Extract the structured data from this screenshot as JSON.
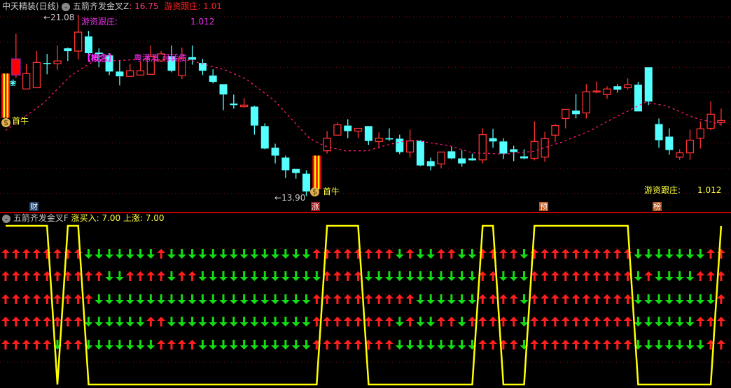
{
  "header": {
    "stock_name": "中天精装(日线)",
    "indicator_name": "五箭齐发金叉Z",
    "indicator_value": ": 16.75",
    "youzi_label": "游资跟庄",
    "youzi_value": ": 1.01",
    "menu_icon": "chevron-down-circle-icon"
  },
  "main_chart": {
    "high_label": "21.08",
    "low_label": "13.90",
    "youzi_label_top": "游资跟庄:",
    "youzi_value_top": "1.012",
    "concept_label": "【概念】",
    "concept_value": "粤港澳 可转债",
    "first_bull_label": "首牛",
    "youzi_label_bottom": "游资跟庄:",
    "youzi_value_bottom": "1.012",
    "badges": [
      {
        "text": "财",
        "color": "#1c3f6e"
      },
      {
        "text": "涨",
        "color": "#a01414"
      },
      {
        "text": "预",
        "color": "#c0501a"
      },
      {
        "text": "榜",
        "color": "#b0521a"
      }
    ],
    "colors": {
      "up": "#ff3232",
      "down": "#54ffff",
      "ma": "#ff1a78",
      "grid": "#7a1010",
      "label_magenta": "#e632e6",
      "label_yellow": "#ffff3c"
    }
  },
  "chart_data": {
    "type": "candlestick",
    "price_grid": [
      14,
      15,
      16,
      17,
      18,
      19,
      20,
      21
    ],
    "candles_ochl": [
      [
        17.0,
        18.75,
        18.75,
        17.0
      ],
      [
        18.69,
        19.33,
        20.33,
        18.58
      ],
      [
        18.14,
        18.75,
        19.14,
        18.14
      ],
      [
        18.19,
        19.19,
        19.64,
        18.19
      ],
      [
        19.17,
        19.15,
        19.53,
        18.72
      ],
      [
        19.14,
        19.25,
        19.86,
        18.89
      ],
      [
        19.75,
        19.64,
        19.78,
        19.25
      ],
      [
        19.64,
        20.39,
        21.08,
        19.31
      ],
      [
        20.22,
        19.56,
        20.44,
        19.39
      ],
      [
        19.58,
        19.53,
        19.75,
        19.0
      ],
      [
        19.47,
        18.83,
        19.56,
        18.69
      ],
      [
        18.83,
        18.64,
        19.28,
        18.28
      ],
      [
        18.64,
        18.86,
        19.14,
        18.64
      ],
      [
        18.69,
        18.86,
        19.22,
        18.67
      ],
      [
        18.72,
        19.44,
        19.86,
        18.72
      ],
      [
        19.25,
        19.53,
        19.64,
        19.2
      ],
      [
        19.44,
        18.86,
        19.86,
        18.8
      ],
      [
        18.67,
        19.36,
        19.78,
        18.53
      ],
      [
        19.4,
        19.3,
        19.86,
        19.1
      ],
      [
        19.17,
        18.86,
        19.33,
        18.69
      ],
      [
        18.67,
        18.42,
        18.92,
        18.36
      ],
      [
        18.33,
        17.92,
        18.33,
        17.3
      ],
      [
        17.56,
        17.5,
        17.92,
        17.36
      ],
      [
        17.44,
        17.5,
        17.78,
        17.4
      ],
      [
        17.44,
        16.69,
        17.47,
        16.33
      ],
      [
        16.67,
        15.78,
        16.78,
        15.75
      ],
      [
        15.81,
        15.5,
        15.97,
        15.19
      ],
      [
        15.42,
        14.92,
        15.5,
        14.61
      ],
      [
        14.97,
        14.81,
        14.97,
        14.58
      ],
      [
        14.78,
        14.08,
        14.92,
        13.9
      ],
      [
        14.17,
        15.5,
        15.5,
        14.17
      ],
      [
        15.69,
        16.19,
        16.47,
        15.58
      ],
      [
        16.31,
        16.72,
        16.81,
        16.31
      ],
      [
        16.69,
        16.47,
        16.94,
        16.19
      ],
      [
        16.47,
        16.58,
        16.58,
        16.19
      ],
      [
        16.67,
        16.08,
        16.67,
        15.92
      ],
      [
        16.06,
        16.19,
        16.42,
        15.78
      ],
      [
        16.19,
        16.14,
        16.58,
        16.08
      ],
      [
        16.17,
        15.64,
        16.33,
        15.56
      ],
      [
        15.64,
        16.08,
        16.53,
        15.42
      ],
      [
        16.08,
        15.11,
        16.11,
        15.08
      ],
      [
        15.28,
        15.08,
        15.42,
        14.92
      ],
      [
        15.17,
        15.64,
        15.64,
        15.0
      ],
      [
        15.67,
        15.39,
        15.86,
        15.36
      ],
      [
        15.39,
        15.19,
        15.72,
        15.06
      ],
      [
        15.39,
        15.31,
        15.58,
        15.3
      ],
      [
        15.33,
        16.33,
        16.58,
        15.19
      ],
      [
        16.19,
        16.06,
        16.56,
        15.81
      ],
      [
        16.06,
        15.58,
        16.19,
        15.36
      ],
      [
        15.75,
        15.64,
        15.89,
        15.28
      ],
      [
        15.47,
        15.39,
        15.75,
        15.36
      ],
      [
        15.39,
        16.06,
        16.86,
        15.31
      ],
      [
        15.44,
        16.17,
        16.44,
        15.25
      ],
      [
        16.31,
        16.69,
        16.75,
        16.03
      ],
      [
        16.97,
        17.33,
        17.33,
        16.58
      ],
      [
        17.28,
        17.14,
        17.94,
        16.97
      ],
      [
        17.19,
        18.03,
        18.33,
        16.97
      ],
      [
        18.03,
        18.06,
        18.44,
        17.97
      ],
      [
        17.92,
        18.14,
        18.25,
        17.75
      ],
      [
        18.25,
        18.11,
        18.33,
        18.0
      ],
      [
        18.19,
        18.31,
        18.56,
        18.11
      ],
      [
        18.31,
        17.25,
        18.42,
        17.25
      ],
      [
        19.0,
        17.64,
        19.0,
        17.5
      ],
      [
        16.75,
        16.11,
        16.97,
        15.81
      ],
      [
        16.25,
        15.72,
        16.58,
        15.53
      ],
      [
        15.44,
        15.61,
        15.75,
        15.33
      ],
      [
        15.61,
        16.11,
        16.53,
        15.33
      ],
      [
        16.19,
        16.56,
        16.86,
        15.78
      ],
      [
        16.58,
        17.14,
        17.64,
        16.5
      ],
      [
        16.81,
        16.89,
        17.36,
        16.69
      ]
    ],
    "limit_up_bars": [
      0,
      30
    ],
    "ma_points": [
      [
        0,
        16.5
      ],
      [
        3.6,
        17.56
      ],
      [
        6.3,
        18.67
      ],
      [
        8.4,
        19.22
      ],
      [
        13.1,
        19.31
      ],
      [
        17.8,
        19.28
      ],
      [
        19.2,
        19.11
      ],
      [
        21.2,
        18.89
      ],
      [
        23.2,
        18.53
      ],
      [
        25.9,
        17.69
      ],
      [
        28.2,
        16.67
      ],
      [
        29.3,
        16.19
      ],
      [
        30.7,
        15.89
      ],
      [
        32.7,
        15.69
      ],
      [
        34.9,
        15.69
      ],
      [
        36.5,
        15.89
      ],
      [
        38.3,
        16.06
      ],
      [
        39.6,
        16.11
      ],
      [
        41,
        16.0
      ],
      [
        42.8,
        15.89
      ],
      [
        45,
        15.61
      ],
      [
        48.2,
        15.56
      ],
      [
        50.9,
        15.67
      ],
      [
        53.6,
        16.03
      ],
      [
        56.3,
        16.47
      ],
      [
        59,
        17.06
      ],
      [
        61.7,
        17.61
      ],
      [
        63.7,
        17.47
      ],
      [
        66.4,
        17.0
      ],
      [
        69.1,
        16.72
      ]
    ],
    "ylim": [
      13.6,
      21.3
    ]
  },
  "indicator": {
    "name": "五箭齐发金叉F",
    "values_text": "涨买入: 7.00  上涨: 7.00",
    "arrow_rows": [
      "1111111100000001000000000000001111111101001100111101111111111000000011",
      "1111111111001111011000000000000111100000000000110001111111111010000111",
      "1111111110000000000000000000001111111111000000111101111111111000000001",
      "1111111100000011000000000000001111111101001101111101111111111000000111",
      "1111101100000001111000000000001111111100000000111101111111111000000011"
    ],
    "yellow_signal": "1111101100000000000000000000000111100000000000110001111111111000000001",
    "colors": {
      "up_arrow": "#ff1e1e",
      "down_arrow": "#14dc14",
      "line": "#ffff00"
    }
  }
}
